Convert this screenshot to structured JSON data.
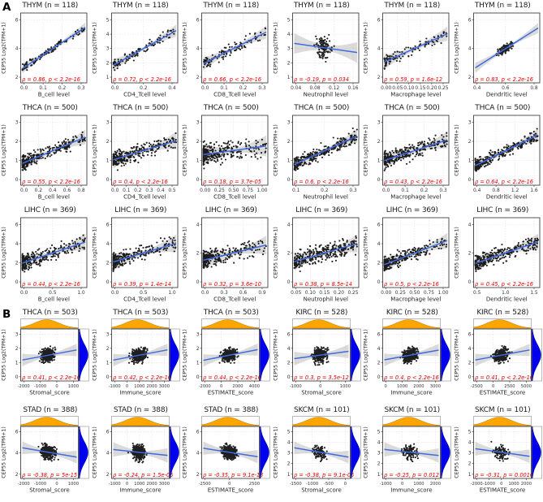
{
  "figure": {
    "panel_a_label": "A",
    "panel_b_label": "B",
    "ylabel": "CEP55 Log2(TPM+1)",
    "colors": {
      "point": "#000000",
      "regression_line": "#3f6be0",
      "confidence_band": "#a0a0a0",
      "stats_text": "#e30000",
      "top_density": "#FFA500",
      "right_density": "#0000EE",
      "grid": "#f0dcdc",
      "panel_border": "#2b2b2b"
    }
  },
  "chart_data": [
    {
      "panel": "A",
      "type": "scatter",
      "title": "THYM (n = 118)",
      "n": 118,
      "xlabel": "B_cell level",
      "ylabel": "CEP55 Log2(TPM+1)",
      "stats": "ρ = 0.86, p < 2.2e-16",
      "rho": 0.86,
      "skew": 1.3,
      "xticks": [
        "0.0",
        "0.1",
        "0.2",
        "0.3"
      ],
      "yticks": [
        "2",
        "4",
        "6"
      ]
    },
    {
      "panel": "A",
      "type": "scatter",
      "title": "THYM (n = 118)",
      "n": 118,
      "xlabel": "CD4_Tcell level",
      "ylabel": "CEP55 Log2(TPM+1)",
      "stats": "ρ = 0.72, p < 2.2e-16",
      "rho": 0.72,
      "skew": 1.6,
      "xticks": [
        "0.0",
        "0.2",
        "0.4"
      ],
      "yticks": [
        "1",
        "2",
        "3",
        "4",
        "5"
      ]
    },
    {
      "panel": "A",
      "type": "scatter",
      "title": "THYM (n = 118)",
      "n": 118,
      "xlabel": "CD8_Tcell level",
      "ylabel": "CEP55 Log2(TPM+1)",
      "stats": "ρ = 0.66, p < 2.2e-16",
      "rho": 0.66,
      "skew": 1.3,
      "xticks": [
        "0.0",
        "0.1",
        "0.2",
        "0.3"
      ],
      "yticks": [
        "2",
        "4",
        "6"
      ]
    },
    {
      "panel": "A",
      "type": "scatter",
      "title": "THYM (n = 118)",
      "n": 118,
      "xlabel": "Neutrophil level",
      "ylabel": "CEP55 Log2(TPM+1)",
      "stats": "ρ = -0.19, p = 0.034",
      "rho": -0.19,
      "skew": 0,
      "xticks": [
        "0.04",
        "0.08",
        "0.12",
        "0.16"
      ],
      "yticks": [
        "1",
        "2",
        "3",
        "4",
        "5"
      ]
    },
    {
      "panel": "A",
      "type": "scatter",
      "title": "THYM (n = 118)",
      "n": 118,
      "xlabel": "Macrophage level",
      "ylabel": "CEP55 Log2(TPM+1)",
      "stats": "ρ = 0.59, p = 1.6e-12",
      "rho": 0.59,
      "skew": 2.0,
      "xticks": [
        "0.00",
        "0.05",
        "0.10",
        "0.15",
        "0.20",
        "0.25"
      ],
      "yticks": [
        "2",
        "4",
        "6"
      ]
    },
    {
      "panel": "A",
      "type": "scatter",
      "title": "THYM (n = 118)",
      "n": 118,
      "xlabel": "Dendritic level",
      "ylabel": "CEP55 Log2(TPM+1)",
      "stats": "ρ = 0.83, p < 2.2e-16",
      "rho": 0.83,
      "skew": 0,
      "xticks": [
        "0.4",
        "0.6",
        "0.8"
      ],
      "yticks": [
        "2",
        "4",
        "6"
      ]
    },
    {
      "panel": "A",
      "type": "scatter",
      "title": "THCA (n = 500)",
      "n": 500,
      "xlabel": "B_cell level",
      "ylabel": "CEP55 Log2(TPM+1)",
      "stats": "ρ = 0.55, p < 2.2e-16",
      "rho": 0.55,
      "skew": 2.3,
      "xticks": [
        "0.0",
        "0.2",
        "0.4",
        "0.6",
        "0.8"
      ],
      "yticks": [
        "0",
        "1",
        "2",
        "3"
      ]
    },
    {
      "panel": "A",
      "type": "scatter",
      "title": "THCA (n = 500)",
      "n": 500,
      "xlabel": "CD4_Tcell level",
      "ylabel": "CEP55 Log2(TPM+1)",
      "stats": "ρ = 0.4, p < 2.2e-16",
      "rho": 0.4,
      "skew": 2.0,
      "xticks": [
        "0.0",
        "0.1",
        "0.2",
        "0.3",
        "0.4",
        "0.5"
      ],
      "yticks": [
        "0",
        "1",
        "2",
        "3"
      ]
    },
    {
      "panel": "A",
      "type": "scatter",
      "title": "THCA (n = 500)",
      "n": 500,
      "xlabel": "CD8_Tcell level",
      "ylabel": "CEP55 Log2(TPM+1)",
      "stats": "ρ = 0.18, p = 3.7e-05",
      "rho": 0.18,
      "skew": 2.8,
      "xticks": [
        "0.00",
        "0.25",
        "0.50",
        "0.75",
        "1.00"
      ],
      "yticks": [
        "0",
        "1",
        "2",
        "3"
      ]
    },
    {
      "panel": "A",
      "type": "scatter",
      "title": "THCA (n = 500)",
      "n": 500,
      "xlabel": "Neutrophil level",
      "ylabel": "CEP55 Log2(TPM+1)",
      "stats": "ρ = 0.6, p < 2.2e-16",
      "rho": 0.6,
      "skew": 1.6,
      "xticks": [
        "0.1",
        "0.2",
        "0.3"
      ],
      "yticks": [
        "0",
        "1",
        "2",
        "3"
      ]
    },
    {
      "panel": "A",
      "type": "scatter",
      "title": "THCA (n = 500)",
      "n": 500,
      "xlabel": "Macrophage level",
      "ylabel": "CEP55 Log2(TPM+1)",
      "stats": "ρ = 0.43, p < 2.2e-16",
      "rho": 0.43,
      "skew": 2.0,
      "xticks": [
        "0.0",
        "0.1",
        "0.2",
        "0.3"
      ],
      "yticks": [
        "0",
        "1",
        "2",
        "3"
      ]
    },
    {
      "panel": "A",
      "type": "scatter",
      "title": "THCA (n = 500)",
      "n": 500,
      "xlabel": "Dendritic level",
      "ylabel": "CEP55 Log2(TPM+1)",
      "stats": "ρ = 0.64, p < 2.2e-16",
      "rho": 0.64,
      "skew": 2.0,
      "xticks": [
        "0.4",
        "0.8",
        "1.2",
        "1.6"
      ],
      "yticks": [
        "0",
        "1",
        "2",
        "3"
      ]
    },
    {
      "panel": "A",
      "type": "scatter",
      "title": "LIHC (n = 369)",
      "n": 369,
      "xlabel": "B_cell level",
      "ylabel": "CEP55 Log2(TPM+1)",
      "stats": "ρ = 0.44, p < 2.2e-16",
      "rho": 0.44,
      "skew": 2.8,
      "xticks": [
        "0.0",
        "0.5",
        "1.0"
      ],
      "yticks": [
        "0",
        "2",
        "4",
        "6"
      ]
    },
    {
      "panel": "A",
      "type": "scatter",
      "title": "LIHC (n = 369)",
      "n": 369,
      "xlabel": "CD4_Tcell level",
      "ylabel": "CEP55 Log2(TPM+1)",
      "stats": "ρ = 0.39, p = 1.4e-14",
      "rho": 0.39,
      "skew": 2.8,
      "xticks": [
        "0.0",
        "0.5",
        "1.0"
      ],
      "yticks": [
        "0",
        "2",
        "4",
        "6"
      ]
    },
    {
      "panel": "A",
      "type": "scatter",
      "title": "LIHC (n = 369)",
      "n": 369,
      "xlabel": "CD8_Tcell level",
      "ylabel": "CEP55 Log2(TPM+1)",
      "stats": "ρ = 0.32, p = 3.6e-10",
      "rho": 0.32,
      "skew": 2.8,
      "xticks": [
        "0.0",
        "0.3",
        "0.6",
        "0.9"
      ],
      "yticks": [
        "0",
        "2",
        "4"
      ]
    },
    {
      "panel": "A",
      "type": "scatter",
      "title": "LIHC (n = 369)",
      "n": 369,
      "xlabel": "Neutrophil level",
      "ylabel": "CEP55 Log2(TPM+1)",
      "stats": "ρ = 0.38, p = 8.5e-14",
      "rho": 0.38,
      "skew": 1.4,
      "xticks": [
        "0.05",
        "0.10",
        "0.15",
        "0.20",
        "0.25"
      ],
      "yticks": [
        "0",
        "2",
        "4"
      ]
    },
    {
      "panel": "A",
      "type": "scatter",
      "title": "LIHC (n = 369)",
      "n": 369,
      "xlabel": "Macrophage level",
      "ylabel": "CEP55 Log2(TPM+1)",
      "stats": "ρ = 0.5, p < 2.2e-16",
      "rho": 0.5,
      "skew": 2.8,
      "xticks": [
        "0.00",
        "0.25",
        "0.50",
        "0.75",
        "1.00"
      ],
      "yticks": [
        "0",
        "2",
        "4",
        "6"
      ]
    },
    {
      "panel": "A",
      "type": "scatter",
      "title": "LIHC (n = 369)",
      "n": 369,
      "xlabel": "Dendritic level",
      "ylabel": "CEP55 Log2(TPM+1)",
      "stats": "ρ = 0.45, p < 2.2e-16",
      "rho": 0.45,
      "skew": 1.8,
      "xticks": [
        "0.5",
        "1.0",
        "1.5"
      ],
      "yticks": [
        "0",
        "2",
        "4"
      ]
    },
    {
      "panel": "B",
      "type": "scatter",
      "title": "THCA (n = 503)",
      "n": 503,
      "xlabel": "Stromal_score",
      "ylabel": "CEP55 Log2(TPM+1)",
      "stats": "ρ = 0.41, p < 2.2e-16",
      "rho": 0.41,
      "skew": 0,
      "xticks": [
        "-2000",
        "-1000",
        "0",
        "1000"
      ],
      "yticks": [
        "0",
        "1",
        "2",
        "3"
      ]
    },
    {
      "panel": "B",
      "type": "scatter",
      "title": "THCA (n = 503)",
      "n": 503,
      "xlabel": "Immune_score",
      "ylabel": "CEP55 Log2(TPM+1)",
      "stats": "ρ = 0.42, p < 2.2e-16",
      "rho": 0.42,
      "skew": 0,
      "xticks": [
        "-1000",
        "0",
        "1000",
        "2000",
        "3000"
      ],
      "yticks": [
        "0",
        "1",
        "2",
        "3"
      ]
    },
    {
      "panel": "B",
      "type": "scatter",
      "title": "THCA (n = 503)",
      "n": 503,
      "xlabel": "ESTIMATE_score",
      "ylabel": "CEP55 Log2(TPM+1)",
      "stats": "ρ = 0.44, p < 2.2e-16",
      "rho": 0.44,
      "skew": 0,
      "xticks": [
        "-2000",
        "0",
        "2000",
        "4000"
      ],
      "yticks": [
        "0",
        "1",
        "2",
        "3"
      ]
    },
    {
      "panel": "B",
      "type": "scatter",
      "title": "KIRC (n = 528)",
      "n": 528,
      "xlabel": "Stromal_score",
      "ylabel": "CEP55 Log2(TPM+1)",
      "stats": "ρ = 0.3, p = 3.5e-12",
      "rho": 0.3,
      "skew": 0,
      "xticks": [
        "-1000",
        "0",
        "1000"
      ],
      "yticks": [
        "0",
        "2",
        "4",
        "6"
      ]
    },
    {
      "panel": "B",
      "type": "scatter",
      "title": "KIRC (n = 528)",
      "n": 528,
      "xlabel": "Immune_score",
      "ylabel": "CEP55 Log2(TPM+1)",
      "stats": "ρ = 0.4, p < 2.2e-16",
      "rho": 0.4,
      "skew": 0,
      "xticks": [
        "0",
        "1000",
        "2000",
        "3000"
      ],
      "yticks": [
        "0",
        "2",
        "4",
        "6"
      ]
    },
    {
      "panel": "B",
      "type": "scatter",
      "title": "KIRC (n = 528)",
      "n": 528,
      "xlabel": "ESTIMATE_score",
      "ylabel": "CEP55 Log2(TPM+1)",
      "stats": "ρ = 0.41, p < 2.2e-16",
      "rho": 0.41,
      "skew": 0,
      "xticks": [
        "-2500",
        "0",
        "2500",
        "5000"
      ],
      "yticks": [
        "0",
        "2",
        "4",
        "6"
      ]
    },
    {
      "panel": "B",
      "type": "scatter",
      "title": "STAD (n = 388)",
      "n": 388,
      "xlabel": "Stromal_score",
      "ylabel": "CEP55 Log2(TPM+1)",
      "stats": "ρ = -0.38, p = 5e-15",
      "rho": -0.38,
      "skew": 0,
      "xticks": [
        "-2000",
        "-1000",
        "0",
        "1000"
      ],
      "yticks": [
        "2",
        "4",
        "6"
      ]
    },
    {
      "panel": "B",
      "type": "scatter",
      "title": "STAD (n = 388)",
      "n": 388,
      "xlabel": "Immune_score",
      "ylabel": "CEP55 Log2(TPM+1)",
      "stats": "ρ = -0.24, p = 1.5e-06",
      "rho": -0.24,
      "skew": 0,
      "xticks": [
        "-1000",
        "0",
        "1000",
        "2000",
        "3000"
      ],
      "yticks": [
        "2",
        "4",
        "6"
      ]
    },
    {
      "panel": "B",
      "type": "scatter",
      "title": "STAD (n = 388)",
      "n": 388,
      "xlabel": "ESTIMATE_score",
      "ylabel": "CEP55 Log2(TPM+1)",
      "stats": "ρ = -0.35, p = 9.1e-13",
      "rho": -0.35,
      "skew": 0,
      "xticks": [
        "-2500",
        "0",
        "2500"
      ],
      "yticks": [
        "2",
        "4",
        "6"
      ]
    },
    {
      "panel": "B",
      "type": "scatter",
      "title": "SKCM (n = 101)",
      "n": 101,
      "xlabel": "Stromal_score",
      "ylabel": "CEP55 Log2(TPM+1)",
      "stats": "ρ = -0.38, p = 9.1e-05",
      "rho": -0.38,
      "skew": 0,
      "xticks": [
        "-1500",
        "-1000",
        "-500",
        "0"
      ],
      "yticks": [
        "1",
        "2",
        "3",
        "4",
        "5"
      ]
    },
    {
      "panel": "B",
      "type": "scatter",
      "title": "SKCM (n = 101)",
      "n": 101,
      "xlabel": "Immune_score",
      "ylabel": "CEP55 Log2(TPM+1)",
      "stats": "ρ = -0.25, p = 0.012",
      "rho": -0.25,
      "skew": 0,
      "xticks": [
        "-1000",
        "0",
        "1000",
        "2000"
      ],
      "yticks": [
        "1",
        "2",
        "3",
        "4",
        "5"
      ]
    },
    {
      "panel": "B",
      "type": "scatter",
      "title": "SKCM (n = 101)",
      "n": 101,
      "xlabel": "ESTIMATE_score",
      "ylabel": "CEP55 Log2(TPM+1)",
      "stats": "ρ = -0.31, p = 0.0016",
      "rho": -0.31,
      "skew": 0,
      "xticks": [
        "-2000",
        "-1000",
        "0",
        "1000",
        "2000"
      ],
      "yticks": [
        "1",
        "2",
        "3",
        "4",
        "5"
      ]
    }
  ]
}
